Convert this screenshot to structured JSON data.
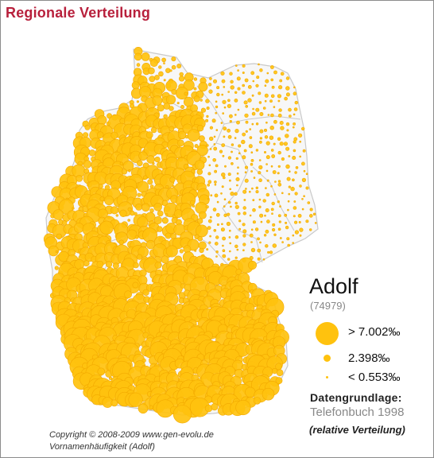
{
  "header": {
    "title": "Regionale Verteilung"
  },
  "legend": {
    "name": "Adolf",
    "count": "(74979)",
    "levels": [
      {
        "label": "> 7.002‰",
        "size": "large"
      },
      {
        "label": "2.398‰",
        "size": "medium"
      },
      {
        "label": "< 0.553‰",
        "size": "small"
      }
    ]
  },
  "source": {
    "label": "Datengrundlage:",
    "value": "Telefonbuch 1998",
    "note": "(relative Verteilung)"
  },
  "footer": {
    "copyright": "Copyright © 2008-2009 www.gen-evolu.de",
    "subtitle": "Vornamenhäufigkeit (Adolf)"
  },
  "colors": {
    "bubble": "#ffc20e",
    "bubble_stroke": "#f2a900",
    "state_border": "#c9c9c9",
    "country_fill": "#f7f7f7",
    "title": "#b8203c"
  },
  "map_data": {
    "type": "bubble-map",
    "country": "Germany",
    "value_unit": "‰",
    "thresholds": [
      7.002,
      2.398,
      0.553
    ]
  }
}
